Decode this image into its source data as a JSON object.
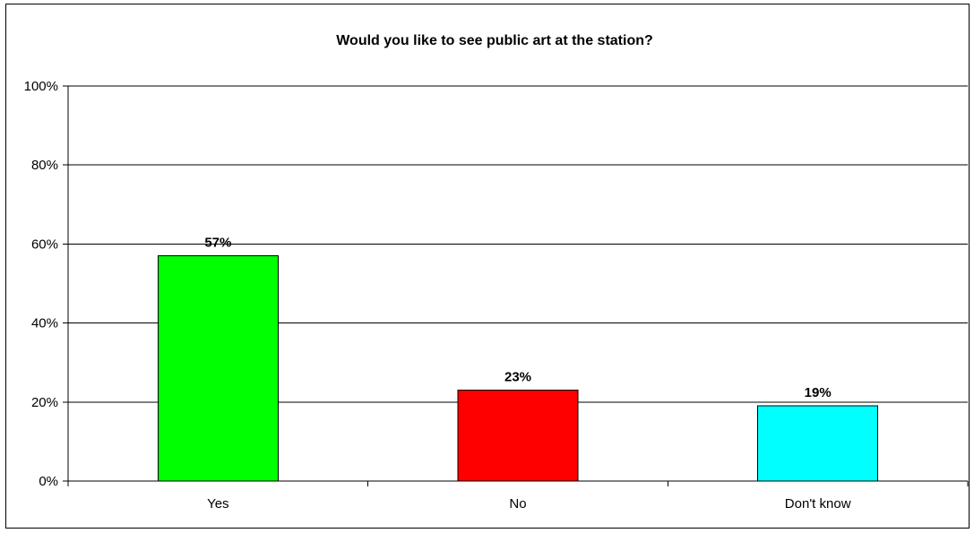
{
  "chart_data": {
    "type": "bar",
    "title": "Would you like to see public art at the station?",
    "categories": [
      "Yes",
      "No",
      "Don't know"
    ],
    "values": [
      57,
      23,
      19
    ],
    "data_labels": [
      "57%",
      "23%",
      "19%"
    ],
    "bar_colors": [
      "#00FF00",
      "#FF0000",
      "#00FFFF"
    ],
    "xlabel": "",
    "ylabel": "",
    "ylim": [
      0,
      100
    ],
    "yticks": [
      0,
      20,
      40,
      60,
      80,
      100
    ],
    "ytick_labels": [
      "0%",
      "20%",
      "40%",
      "60%",
      "80%",
      "100%"
    ],
    "grid": true,
    "legend": "none"
  }
}
